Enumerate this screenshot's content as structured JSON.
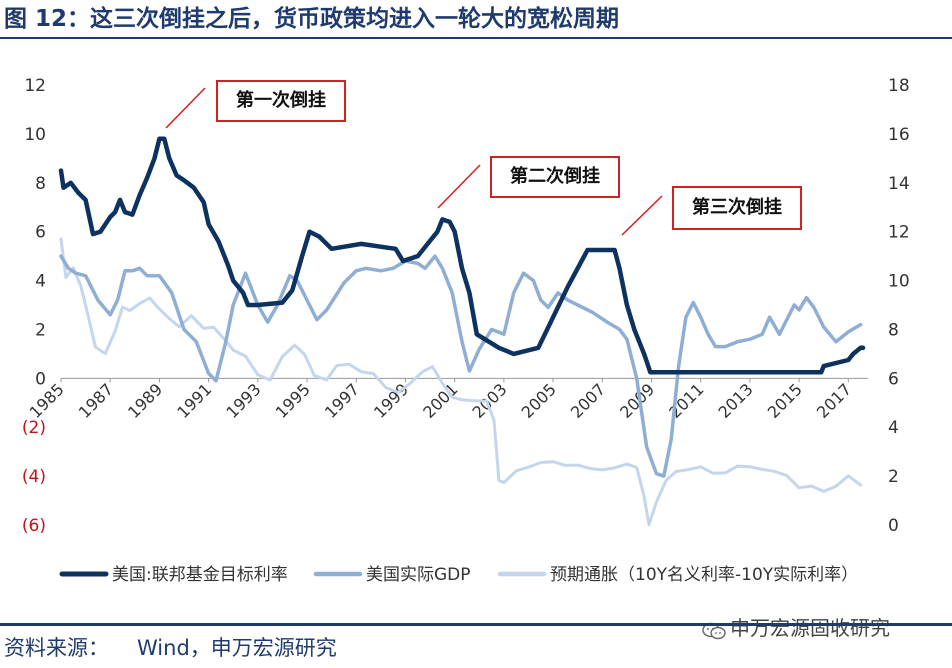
{
  "title": "图 12：这三次倒挂之后，货币政策均进入一轮大的宽松周期",
  "source": {
    "label": "资料来源：",
    "value": "Wind，申万宏源研究"
  },
  "watermark": "申万宏源固收研究",
  "annotations": [
    "第一次倒挂",
    "第二次倒挂",
    "第三次倒挂"
  ],
  "colors": {
    "title": "#1f3b6e",
    "fed": "#0e3260",
    "gdp": "#8faed3",
    "infl": "#c4d6ee",
    "negative": "#c0141c",
    "box": "#d21f1f"
  },
  "chart_data": {
    "type": "line",
    "x_tick_labels": [
      "1985",
      "1987",
      "1989",
      "1991",
      "1993",
      "1995",
      "1997",
      "1999",
      "2001",
      "2003",
      "2005",
      "2007",
      "2009",
      "2011",
      "2013",
      "2015",
      "2017"
    ],
    "xlim": [
      1985,
      2017.8
    ],
    "y_left": {
      "lim": [
        -6,
        12
      ],
      "tick_labels": [
        "12",
        "10",
        "8",
        "6",
        "4",
        "2",
        "0",
        "(2)",
        "(4)",
        "(6)"
      ],
      "tick_values": [
        12,
        10,
        8,
        6,
        4,
        2,
        0,
        -2,
        -4,
        -6
      ]
    },
    "y_right": {
      "lim": [
        0,
        18
      ],
      "tick_labels": [
        "18",
        "16",
        "14",
        "12",
        "10",
        "8",
        "6",
        "4",
        "2",
        "0"
      ],
      "tick_values": [
        18,
        16,
        14,
        12,
        10,
        8,
        6,
        4,
        2,
        0
      ]
    },
    "legend_position": "bottom",
    "grid": false,
    "series": [
      {
        "name": "美国:联邦基金目标利率",
        "axis": "left",
        "points": [
          [
            1985,
            8.5
          ],
          [
            1985.1,
            7.8
          ],
          [
            1985.4,
            8.0
          ],
          [
            1985.7,
            7.6
          ],
          [
            1986.0,
            7.3
          ],
          [
            1986.3,
            5.9
          ],
          [
            1986.6,
            6.0
          ],
          [
            1987.0,
            6.6
          ],
          [
            1987.2,
            6.8
          ],
          [
            1987.4,
            7.3
          ],
          [
            1987.6,
            6.8
          ],
          [
            1987.9,
            6.7
          ],
          [
            1988.2,
            7.5
          ],
          [
            1988.5,
            8.2
          ],
          [
            1988.8,
            9.0
          ],
          [
            1989.0,
            9.8
          ],
          [
            1989.2,
            9.8
          ],
          [
            1989.4,
            9.0
          ],
          [
            1989.7,
            8.3
          ],
          [
            1990.0,
            8.1
          ],
          [
            1990.4,
            7.8
          ],
          [
            1990.8,
            7.2
          ],
          [
            1991.0,
            6.3
          ],
          [
            1991.4,
            5.6
          ],
          [
            1991.8,
            4.6
          ],
          [
            1992.0,
            4.0
          ],
          [
            1992.4,
            3.5
          ],
          [
            1992.6,
            3.0
          ],
          [
            1993.0,
            3.0
          ],
          [
            1994.0,
            3.1
          ],
          [
            1994.4,
            3.6
          ],
          [
            1994.8,
            5.0
          ],
          [
            1995.1,
            6.0
          ],
          [
            1995.5,
            5.8
          ],
          [
            1996.0,
            5.3
          ],
          [
            1997.2,
            5.5
          ],
          [
            1998.6,
            5.3
          ],
          [
            1998.9,
            4.8
          ],
          [
            1999.5,
            5.0
          ],
          [
            1999.9,
            5.5
          ],
          [
            2000.3,
            6.0
          ],
          [
            2000.5,
            6.5
          ],
          [
            2000.8,
            6.4
          ],
          [
            2001.0,
            6.0
          ],
          [
            2001.3,
            4.5
          ],
          [
            2001.6,
            3.5
          ],
          [
            2001.9,
            1.8
          ],
          [
            2002.8,
            1.25
          ],
          [
            2003.4,
            1.0
          ],
          [
            2004.4,
            1.25
          ],
          [
            2005.0,
            2.5
          ],
          [
            2005.6,
            3.75
          ],
          [
            2006.0,
            4.5
          ],
          [
            2006.4,
            5.25
          ],
          [
            2007.5,
            5.25
          ],
          [
            2007.7,
            4.5
          ],
          [
            2008.0,
            3.0
          ],
          [
            2008.3,
            2.0
          ],
          [
            2008.7,
            1.0
          ],
          [
            2008.95,
            0.25
          ],
          [
            2015.9,
            0.25
          ],
          [
            2016.0,
            0.5
          ],
          [
            2017.0,
            0.75
          ],
          [
            2017.2,
            1.0
          ],
          [
            2017.5,
            1.25
          ],
          [
            2017.6,
            1.25
          ]
        ]
      },
      {
        "name": "美国实际GDP",
        "axis": "left",
        "points": [
          [
            1985,
            5.0
          ],
          [
            1985.3,
            4.5
          ],
          [
            1985.6,
            4.3
          ],
          [
            1986.0,
            4.2
          ],
          [
            1986.5,
            3.2
          ],
          [
            1987.0,
            2.6
          ],
          [
            1987.3,
            3.2
          ],
          [
            1987.6,
            4.4
          ],
          [
            1987.9,
            4.4
          ],
          [
            1988.2,
            4.5
          ],
          [
            1988.5,
            4.2
          ],
          [
            1989.0,
            4.2
          ],
          [
            1989.5,
            3.5
          ],
          [
            1990.0,
            2.0
          ],
          [
            1990.5,
            1.5
          ],
          [
            1991.0,
            0.2
          ],
          [
            1991.3,
            -0.1
          ],
          [
            1991.7,
            1.5
          ],
          [
            1992.0,
            3.0
          ],
          [
            1992.5,
            4.3
          ],
          [
            1993.0,
            3.0
          ],
          [
            1993.4,
            2.3
          ],
          [
            1993.8,
            3.0
          ],
          [
            1994.3,
            4.2
          ],
          [
            1994.6,
            4.0
          ],
          [
            1995.0,
            3.2
          ],
          [
            1995.4,
            2.4
          ],
          [
            1995.8,
            2.8
          ],
          [
            1996.5,
            3.9
          ],
          [
            1997.0,
            4.4
          ],
          [
            1997.4,
            4.5
          ],
          [
            1998.0,
            4.4
          ],
          [
            1998.5,
            4.5
          ],
          [
            1999.0,
            4.8
          ],
          [
            1999.5,
            4.7
          ],
          [
            1999.8,
            4.5
          ],
          [
            2000.2,
            5.0
          ],
          [
            2000.5,
            4.5
          ],
          [
            2000.9,
            3.5
          ],
          [
            2001.3,
            1.5
          ],
          [
            2001.6,
            0.3
          ],
          [
            2002.0,
            1.2
          ],
          [
            2002.5,
            2.0
          ],
          [
            2003.0,
            1.8
          ],
          [
            2003.4,
            3.5
          ],
          [
            2003.8,
            4.3
          ],
          [
            2004.2,
            4.0
          ],
          [
            2004.5,
            3.2
          ],
          [
            2004.8,
            2.9
          ],
          [
            2005.2,
            3.5
          ],
          [
            2005.6,
            3.2
          ],
          [
            2006.0,
            3.0
          ],
          [
            2006.6,
            2.7
          ],
          [
            2007.2,
            2.3
          ],
          [
            2007.7,
            2.0
          ],
          [
            2008.0,
            1.6
          ],
          [
            2008.4,
            0.0
          ],
          [
            2008.8,
            -2.8
          ],
          [
            2009.2,
            -3.9
          ],
          [
            2009.5,
            -4.0
          ],
          [
            2009.8,
            -2.5
          ],
          [
            2010.1,
            0.5
          ],
          [
            2010.4,
            2.5
          ],
          [
            2010.7,
            3.1
          ],
          [
            2011.0,
            2.5
          ],
          [
            2011.3,
            1.8
          ],
          [
            2011.6,
            1.3
          ],
          [
            2012.0,
            1.3
          ],
          [
            2012.5,
            1.5
          ],
          [
            2013.0,
            1.6
          ],
          [
            2013.5,
            1.8
          ],
          [
            2013.8,
            2.5
          ],
          [
            2014.2,
            1.8
          ],
          [
            2014.5,
            2.4
          ],
          [
            2014.8,
            3.0
          ],
          [
            2015.0,
            2.8
          ],
          [
            2015.3,
            3.3
          ],
          [
            2015.6,
            2.9
          ],
          [
            2016.0,
            2.1
          ],
          [
            2016.5,
            1.5
          ],
          [
            2017.0,
            1.9
          ],
          [
            2017.5,
            2.2
          ]
        ]
      },
      {
        "name": "预期通胀（10Y名义利率-10Y实际利率）",
        "axis": "right",
        "points": [
          [
            1985.0,
            11.7
          ],
          [
            1985.2,
            10.2
          ],
          [
            1985.5,
            10.6
          ],
          [
            1985.8,
            9.8
          ],
          [
            1986.1,
            8.5
          ],
          [
            1986.4,
            7.2
          ],
          [
            1986.8,
            7.0
          ],
          [
            1987.2,
            8.0
          ],
          [
            1987.5,
            9.0
          ],
          [
            1987.8,
            8.8
          ],
          [
            1988.2,
            9.0
          ],
          [
            1988.6,
            9.2
          ],
          [
            1989.0,
            8.8
          ],
          [
            1989.4,
            8.5
          ],
          [
            1989.8,
            8.2
          ],
          [
            1990.3,
            8.6
          ],
          [
            1990.8,
            8.0
          ],
          [
            1991.2,
            8.0
          ],
          [
            1991.6,
            7.6
          ],
          [
            1992.0,
            7.2
          ],
          [
            1992.5,
            7.0
          ],
          [
            1993.0,
            6.2
          ],
          [
            1993.5,
            5.9
          ],
          [
            1994.0,
            6.8
          ],
          [
            1994.5,
            7.3
          ],
          [
            1994.9,
            7.0
          ],
          [
            1995.3,
            6.2
          ],
          [
            1995.8,
            6.0
          ],
          [
            1996.2,
            6.5
          ],
          [
            1996.7,
            6.5
          ],
          [
            1997.2,
            6.2
          ],
          [
            1997.7,
            6.2
          ],
          [
            1998.2,
            5.7
          ],
          [
            1998.7,
            5.5
          ],
          [
            1999.2,
            5.8
          ],
          [
            1999.7,
            6.2
          ],
          [
            2000.1,
            6.4
          ],
          [
            2000.5,
            5.8
          ],
          [
            2000.9,
            5.3
          ],
          [
            2001.3,
            5.2
          ],
          [
            2001.8,
            5.1
          ],
          [
            2002.3,
            5.0
          ],
          [
            2002.6,
            4.2
          ],
          [
            2002.8,
            1.8
          ],
          [
            2003.0,
            1.8
          ],
          [
            2003.5,
            2.3
          ],
          [
            2004.0,
            2.4
          ],
          [
            2004.5,
            2.5
          ],
          [
            2005.0,
            2.5
          ],
          [
            2005.5,
            2.4
          ],
          [
            2006.0,
            2.5
          ],
          [
            2006.5,
            2.4
          ],
          [
            2007.0,
            2.3
          ],
          [
            2007.5,
            2.3
          ],
          [
            2008.0,
            2.4
          ],
          [
            2008.4,
            2.3
          ],
          [
            2008.7,
            1.2
          ],
          [
            2008.9,
            0.1
          ],
          [
            2009.2,
            1.0
          ],
          [
            2009.6,
            1.8
          ],
          [
            2010.0,
            2.1
          ],
          [
            2010.5,
            2.2
          ],
          [
            2011.0,
            2.4
          ],
          [
            2011.5,
            2.2
          ],
          [
            2012.0,
            2.2
          ],
          [
            2012.5,
            2.4
          ],
          [
            2013.0,
            2.3
          ],
          [
            2013.5,
            2.2
          ],
          [
            2014.0,
            2.2
          ],
          [
            2014.5,
            2.1
          ],
          [
            2015.0,
            1.6
          ],
          [
            2015.5,
            1.6
          ],
          [
            2016.0,
            1.3
          ],
          [
            2016.5,
            1.5
          ],
          [
            2017.0,
            2.0
          ],
          [
            2017.5,
            1.7
          ]
        ]
      }
    ]
  }
}
